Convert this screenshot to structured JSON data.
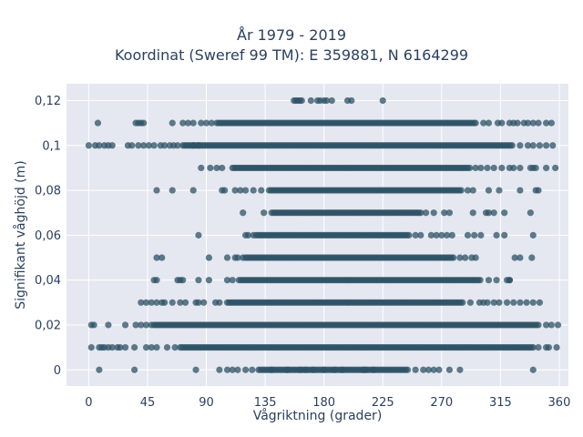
{
  "chart_data": {
    "type": "scatter",
    "title_line1": "År 1979 - 2019",
    "title_line2": "Koordinat (Sweref 99 TM): E 359881, N 6164299",
    "xlabel": "Vågriktning (grader)",
    "ylabel": "Signifikant våghöjd (m)",
    "xlim": [
      -17,
      367
    ],
    "ylim": [
      -0.0072,
      0.1275
    ],
    "x_ticks": [
      0,
      45,
      90,
      135,
      180,
      225,
      270,
      315,
      360
    ],
    "x_tick_labels": [
      "0",
      "45",
      "90",
      "135",
      "180",
      "225",
      "270",
      "315",
      "360"
    ],
    "y_ticks": [
      0,
      0.02,
      0.04,
      0.06,
      0.08,
      0.1,
      0.12
    ],
    "y_tick_labels": [
      "0",
      "0,02",
      "0,04",
      "0,06",
      "0,08",
      "0,1",
      "0,12"
    ],
    "grid": true,
    "marker_color": "#2e5266",
    "plot_bg": "#e5e8f0",
    "rows": [
      {
        "y": 0.12,
        "dense": [
          157,
          163
        ],
        "sparse": [
          170,
          175,
          177,
          180,
          182,
          186,
          198,
          201,
          225
        ]
      },
      {
        "y": 0.11,
        "dense": [
          98,
          296
        ],
        "sparse": [
          7,
          36,
          38,
          40,
          42,
          64,
          72,
          76,
          80,
          86,
          90,
          94,
          302,
          306,
          313,
          316,
          322,
          325,
          328,
          333,
          336,
          340,
          344,
          350,
          354
        ]
      },
      {
        "y": 0.1,
        "dense": [
          72,
          325
        ],
        "sparse": [
          0,
          5,
          8,
          12,
          15,
          18,
          30,
          33,
          38,
          42,
          46,
          50,
          55,
          58,
          62,
          65,
          68,
          80,
          84,
          330,
          336,
          340,
          345,
          350,
          355
        ]
      },
      {
        "y": 0.09,
        "dense": [
          110,
          292
        ],
        "sparse": [
          86,
          93,
          98,
          102,
          296,
          300,
          305,
          310,
          316,
          322,
          325,
          330,
          338,
          340,
          342,
          350,
          357
        ]
      },
      {
        "y": 0.08,
        "dense": [
          138,
          285
        ],
        "sparse": [
          52,
          64,
          80,
          102,
          104,
          112,
          116,
          120,
          126,
          132,
          290,
          294,
          306,
          314,
          330,
          342,
          344
        ]
      },
      {
        "y": 0.07,
        "dense": [
          140,
          254
        ],
        "sparse": [
          118,
          134,
          258,
          264,
          272,
          276,
          294,
          304,
          306,
          310,
          318,
          338
        ]
      },
      {
        "y": 0.06,
        "dense": [
          128,
          246
        ],
        "sparse": [
          84,
          120,
          122,
          126,
          250,
          254,
          262,
          266,
          270,
          274,
          278,
          290,
          295,
          300,
          312,
          318,
          340
        ]
      },
      {
        "y": 0.05,
        "dense": [
          120,
          280
        ],
        "sparse": [
          52,
          56,
          92,
          106,
          112,
          114,
          118,
          284,
          288,
          293,
          296,
          326,
          330,
          339
        ]
      },
      {
        "y": 0.04,
        "dense": [
          115,
          300
        ],
        "sparse": [
          50,
          52,
          68,
          70,
          72,
          84,
          92,
          106,
          110,
          306,
          312,
          320,
          322,
          322
        ]
      },
      {
        "y": 0.03,
        "dense": [
          106,
          286
        ],
        "sparse": [
          40,
          44,
          48,
          52,
          56,
          58,
          64,
          70,
          74,
          82,
          84,
          88,
          97,
          100,
          292,
          299,
          302,
          305,
          310,
          314,
          320,
          325,
          330,
          335,
          340,
          345
        ]
      },
      {
        "y": 0.02,
        "dense": [
          50,
          345
        ],
        "sparse": [
          2,
          4,
          15,
          28,
          36,
          40,
          44,
          48,
          350,
          354,
          359
        ]
      },
      {
        "y": 0.01,
        "dense": [
          70,
          340
        ],
        "sparse": [
          2,
          8,
          10,
          12,
          15,
          18,
          22,
          24,
          28,
          35,
          44,
          48,
          52,
          60,
          66,
          344,
          350,
          352,
          358
        ]
      },
      {
        "y": 0.0,
        "dense": [
          130,
          245
        ],
        "sparse": [
          8,
          35,
          82,
          100,
          106,
          110,
          114,
          120,
          125,
          140,
          152,
          162,
          166,
          172,
          180,
          188,
          194,
          210,
          212,
          218,
          250,
          256,
          260,
          264,
          268,
          276,
          284,
          340
        ]
      }
    ]
  }
}
